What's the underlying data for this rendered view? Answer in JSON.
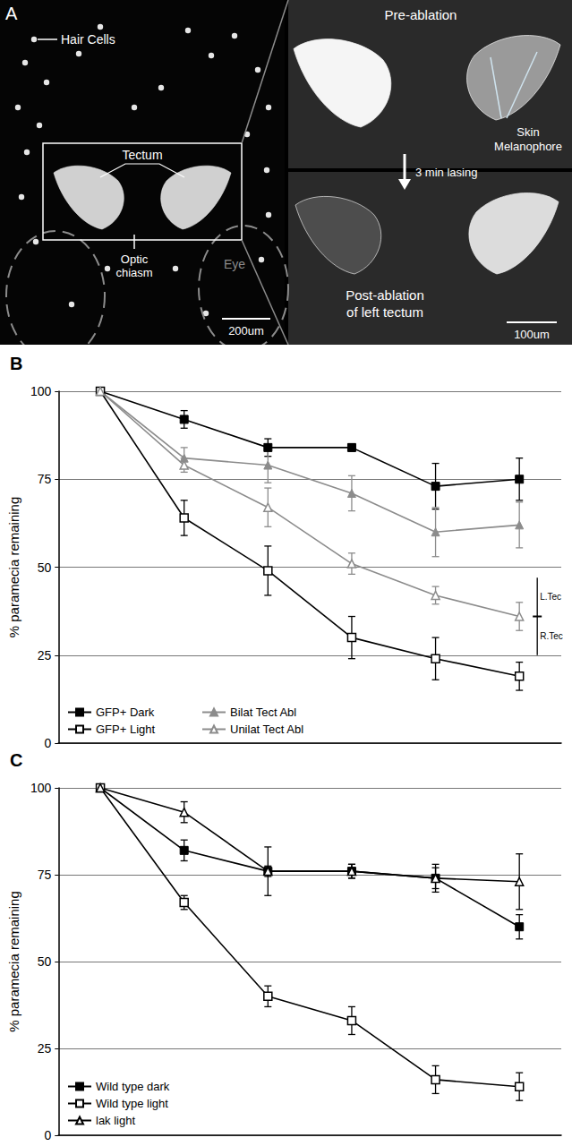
{
  "panel_a": {
    "label": "A",
    "overview": {
      "hair_cells": "Hair Cells",
      "tectum": "Tectum",
      "optic_chiasm": [
        "Optic",
        "chiasm"
      ],
      "eye": "Eye",
      "scale_bar": "200um"
    },
    "pre": {
      "title": "Pre-ablation",
      "melanophore": [
        "Skin",
        "Melanophore"
      ]
    },
    "step": "3 min lasing",
    "post": {
      "title": [
        "Post-ablation",
        "of left tectum"
      ],
      "scale_bar": "100um"
    }
  },
  "chart_data": [
    {
      "type": "line",
      "panel": "B",
      "ylabel": "% paramecia remaining",
      "categories": [
        null,
        null,
        null,
        null,
        null,
        null
      ],
      "ylim": [
        0,
        100
      ],
      "yticks": [
        0,
        25,
        50,
        75,
        100
      ],
      "grid": true,
      "tick_labels": "y",
      "legend": "lower left",
      "series": [
        {
          "name": "GFP+ Dark",
          "color": "#000000",
          "marker": "square",
          "values": [
            100,
            92,
            84,
            84,
            73,
            75
          ],
          "errors": [
            null,
            2.5,
            2.5,
            1,
            6.5,
            6
          ]
        },
        {
          "name": "GFP+ Light",
          "color": "#000000",
          "marker": "square-open",
          "values": [
            100,
            64,
            49,
            30,
            24,
            19
          ],
          "errors": [
            null,
            5,
            7,
            6,
            6,
            4
          ]
        },
        {
          "name": "Bilat Tect Abl",
          "color": "#8c8c8c",
          "marker": "triangle",
          "values": [
            100,
            81,
            79,
            71,
            60,
            62
          ],
          "errors": [
            null,
            3,
            5,
            5,
            7,
            6.5
          ]
        },
        {
          "name": "Unilat Tect Abl",
          "color": "#8c8c8c",
          "marker": "triangle-open",
          "values": [
            100,
            79,
            67,
            51,
            42,
            36
          ],
          "errors": [
            null,
            2,
            5.5,
            3,
            2.5,
            4
          ]
        }
      ],
      "annotation": {
        "labels": [
          "L.Tec",
          "R.Tec"
        ],
        "span": [
          25,
          47
        ],
        "at": 36
      }
    },
    {
      "type": "line",
      "panel": "C",
      "ylabel": "% paramecia remaining",
      "categories": [
        null,
        null,
        null,
        null,
        null,
        null
      ],
      "ylim": [
        0,
        100
      ],
      "yticks": [
        0,
        25,
        50,
        75,
        100
      ],
      "grid": true,
      "tick_labels": "y",
      "legend": "lower left",
      "series": [
        {
          "name": "Wild type dark",
          "color": "#000000",
          "marker": "square",
          "values": [
            100,
            82,
            76,
            76,
            74,
            60
          ],
          "errors": [
            null,
            3,
            1.5,
            2,
            3,
            3.5
          ]
        },
        {
          "name": "Wild type light",
          "color": "#000000",
          "marker": "square-open",
          "values": [
            100,
            67,
            40,
            33,
            16,
            14
          ],
          "errors": [
            null,
            2,
            3,
            4,
            4,
            4
          ]
        },
        {
          "name": "lak light",
          "color": "#000000",
          "marker": "triangle-open",
          "values": [
            100,
            93,
            76,
            76,
            74,
            73
          ],
          "errors": [
            null,
            3,
            7,
            2,
            4,
            8
          ]
        }
      ]
    }
  ]
}
